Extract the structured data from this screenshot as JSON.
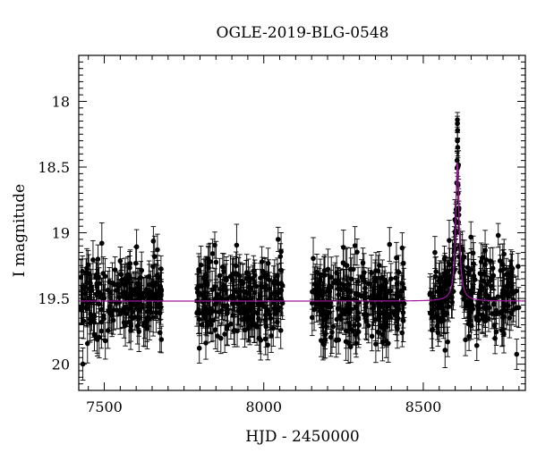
{
  "chart_data": {
    "type": "scatter",
    "title": "OGLE-2019-BLG-0548",
    "xlabel": "HJD - 2450000",
    "ylabel": "I magnitude",
    "xlim": [
      7420,
      8820
    ],
    "ylim": [
      20.2,
      17.65
    ],
    "y_inverted": true,
    "x_ticks": [
      7500,
      8000,
      8500
    ],
    "x_tick_labels": [
      "7500",
      "8000",
      "8500"
    ],
    "y_ticks": [
      18,
      18.5,
      19,
      19.5,
      20
    ],
    "y_tick_labels": [
      "18",
      "18.5",
      "19",
      "19.5",
      "20"
    ],
    "grid": false,
    "observing_seasons": [
      {
        "start": 7425,
        "end": 7485
      },
      {
        "start": 7490,
        "end": 7505
      },
      {
        "start": 7510,
        "end": 7680
      },
      {
        "start": 7790,
        "end": 8060
      },
      {
        "start": 8150,
        "end": 8440
      },
      {
        "start": 8520,
        "end": 8800
      }
    ],
    "baseline_magnitude": 19.52,
    "baseline_scatter_sigma": 0.15,
    "typical_error_bar": 0.13,
    "series": [
      {
        "kind": "data",
        "color": "#000000",
        "notable_points": [
          {
            "x": 8607,
            "y": 18.14
          },
          {
            "x": 8607,
            "y": 18.17
          },
          {
            "x": 8607.5,
            "y": 18.22
          },
          {
            "x": 8607,
            "y": 18.3
          },
          {
            "x": 8608,
            "y": 18.35
          },
          {
            "x": 8606,
            "y": 18.45
          },
          {
            "x": 8608.5,
            "y": 18.5
          },
          {
            "x": 8605,
            "y": 18.62
          },
          {
            "x": 8609,
            "y": 18.7
          },
          {
            "x": 8604,
            "y": 18.85
          },
          {
            "x": 8610,
            "y": 18.92
          },
          {
            "x": 8603,
            "y": 19.0
          },
          {
            "x": 8601,
            "y": 19.12
          },
          {
            "x": 8612,
            "y": 19.18
          },
          {
            "x": 8598,
            "y": 19.28
          },
          {
            "x": 8615,
            "y": 19.3
          },
          {
            "x": 8735,
            "y": 19.02
          },
          {
            "x": 8045,
            "y": 19.05
          }
        ]
      },
      {
        "kind": "model",
        "color": "#a0189e",
        "baseline": 19.52,
        "peak_time": 8607,
        "peak_magnitude": 18.47,
        "half_width_days": 6.5
      }
    ]
  }
}
